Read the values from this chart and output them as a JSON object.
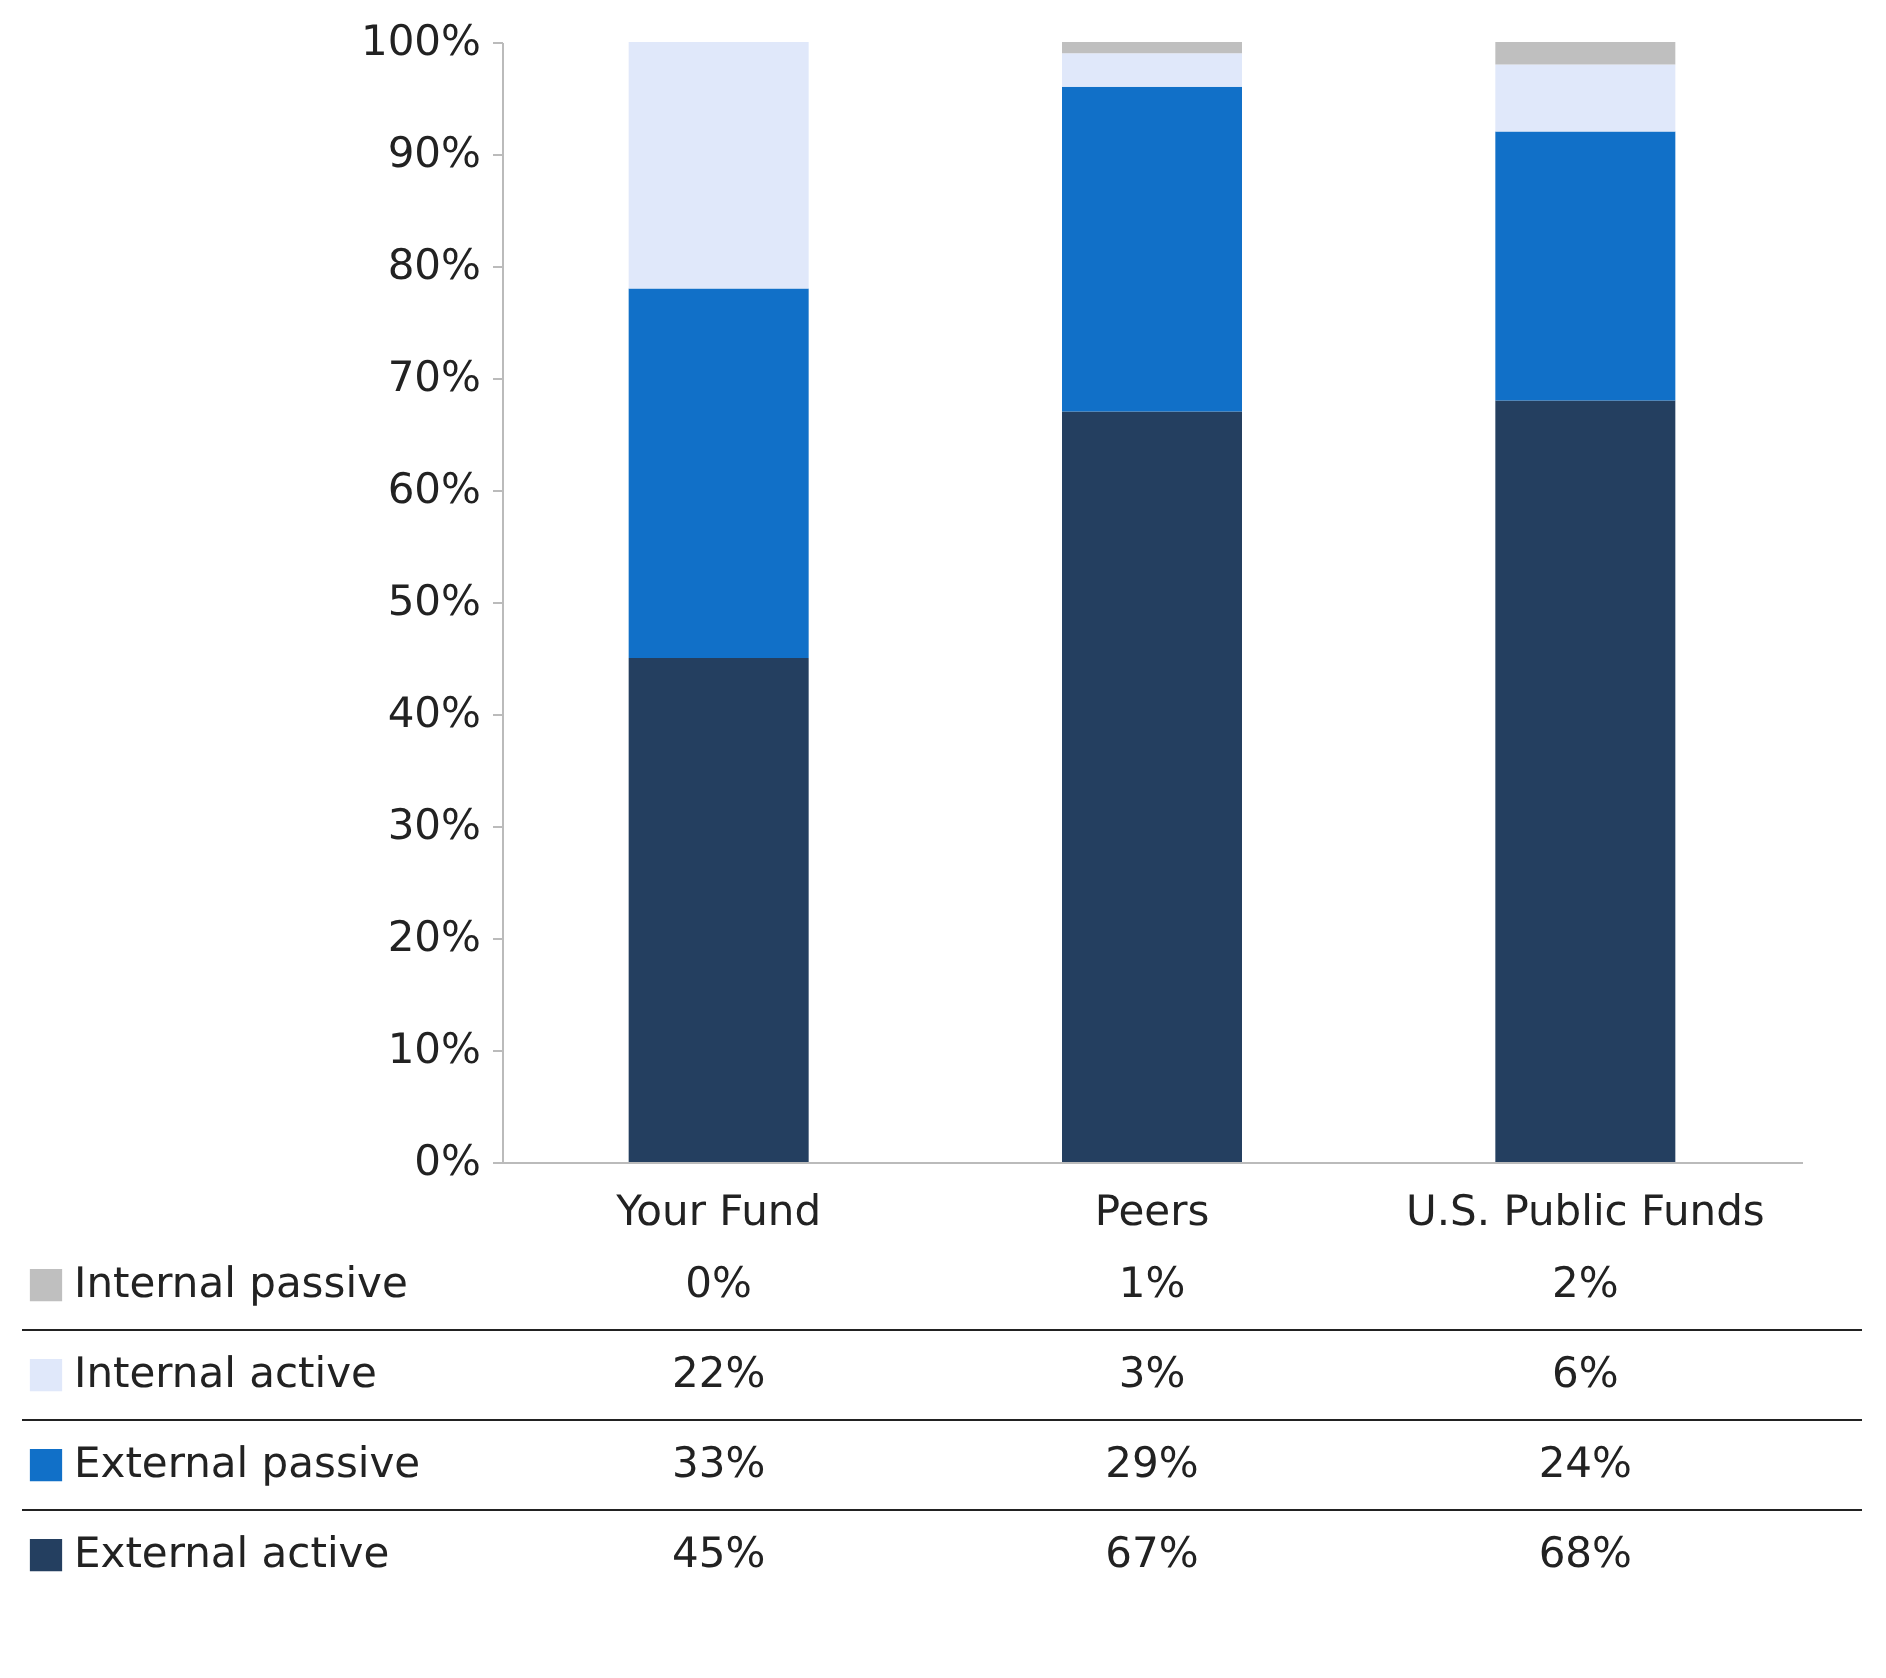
{
  "chart_data": {
    "type": "bar",
    "stacked": true,
    "categories": [
      "Your Fund",
      "Peers",
      "U.S. Public Funds"
    ],
    "series": [
      {
        "name": "External active",
        "color": "#243f60",
        "values": [
          45,
          67,
          68
        ]
      },
      {
        "name": "External passive",
        "color": "#1170c8",
        "values": [
          33,
          29,
          24
        ]
      },
      {
        "name": "Internal active",
        "color": "#e0e8fa",
        "values": [
          22,
          3,
          6
        ]
      },
      {
        "name": "Internal passive",
        "color": "#bfbfbf",
        "values": [
          0,
          1,
          2
        ]
      }
    ],
    "ylim": [
      0,
      100
    ],
    "yticks": [
      {
        "value": 0,
        "label": "0%"
      },
      {
        "value": 10,
        "label": "10%"
      },
      {
        "value": 20,
        "label": "20%"
      },
      {
        "value": 30,
        "label": "30%"
      },
      {
        "value": 40,
        "label": "40%"
      },
      {
        "value": 50,
        "label": "50%"
      },
      {
        "value": 60,
        "label": "60%"
      },
      {
        "value": 70,
        "label": "70%"
      },
      {
        "value": 80,
        "label": "80%"
      },
      {
        "value": 90,
        "label": "90%"
      },
      {
        "value": 100,
        "label": "100%"
      }
    ],
    "value_labels": [
      [
        "45%",
        "67%",
        "68%"
      ],
      [
        "33%",
        "29%",
        "24%"
      ],
      [
        "22%",
        "3%",
        "6%"
      ],
      [
        "0%",
        "1%",
        "2%"
      ]
    ],
    "legend": "bottom",
    "grid": false
  }
}
